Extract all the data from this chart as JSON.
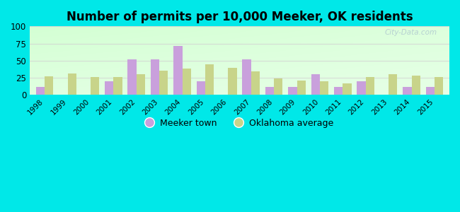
{
  "title": "Number of permits per 10,000 Meeker, OK residents",
  "years": [
    1998,
    1999,
    2000,
    2001,
    2002,
    2003,
    2004,
    2005,
    2006,
    2007,
    2008,
    2009,
    2010,
    2011,
    2012,
    2013,
    2014,
    2015
  ],
  "meeker": [
    12,
    0,
    0,
    20,
    52,
    52,
    71,
    20,
    0,
    52,
    12,
    12,
    30,
    12,
    20,
    0,
    12,
    12
  ],
  "oklahoma": [
    27,
    31,
    26,
    26,
    30,
    35,
    38,
    45,
    39,
    34,
    24,
    21,
    20,
    17,
    26,
    30,
    28,
    26
  ],
  "meeker_color": "#c9a0dc",
  "oklahoma_color": "#c8d48a",
  "outer_bg": "#00e8e8",
  "ylim": [
    0,
    100
  ],
  "yticks": [
    0,
    25,
    50,
    75,
    100
  ],
  "bar_width": 0.38,
  "legend_meeker": "Meeker town",
  "legend_oklahoma": "Oklahoma average",
  "title_fontsize": 12,
  "watermark": "City-Data.com"
}
